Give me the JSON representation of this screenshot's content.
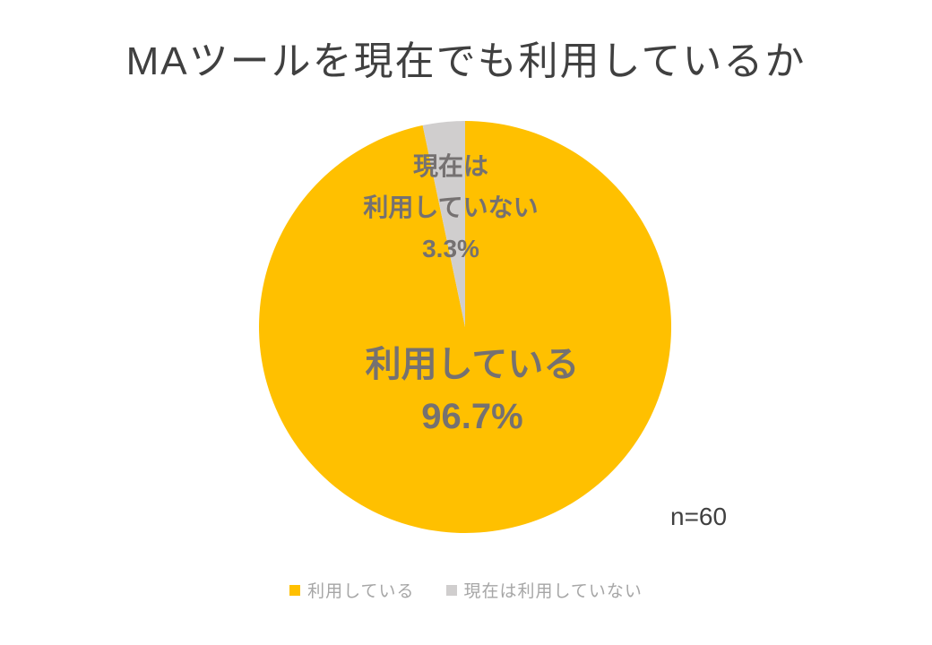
{
  "title": "MAツールを現在でも利用しているか",
  "annotations": {
    "sample_size": "n=60"
  },
  "chart_data": {
    "type": "pie",
    "title": "MAツールを現在でも利用しているか",
    "categories": [
      "利用している",
      "現在は利用していない"
    ],
    "values": [
      96.7,
      3.3
    ],
    "value_unit": "%",
    "colors": [
      "#FFC000",
      "#D0CECE"
    ],
    "start_angle_deg": 0,
    "direction": "clockwise",
    "legend_position": "bottom",
    "sample_size_note": "n=60",
    "data_labels": {
      "using": {
        "line1": "利用している",
        "line2": "96.7%"
      },
      "not_using": {
        "line1": "現在は",
        "line2": "利用していない",
        "line3": "3.3%"
      }
    }
  },
  "legend": {
    "items": [
      {
        "label": "利用している",
        "color": "#FFC000"
      },
      {
        "label": "現在は利用していない",
        "color": "#D0CECE"
      }
    ]
  },
  "colors": {
    "background": "#FFFFFF",
    "title_text": "#404040",
    "data_label_text": "#757171",
    "legend_text": "#A6A6A6",
    "sample_size_text": "#404040"
  }
}
